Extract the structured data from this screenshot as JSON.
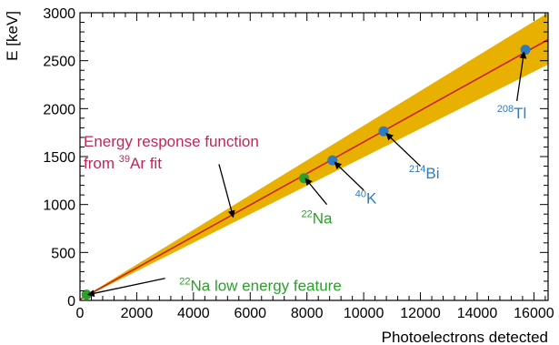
{
  "chart_data": {
    "type": "scatter",
    "xlabel": "Photoelectrons detected",
    "ylabel": "E [keV]",
    "xlim": [
      0,
      16500
    ],
    "ylim": [
      0,
      3000
    ],
    "x_ticks": [
      0,
      2000,
      4000,
      6000,
      8000,
      10000,
      12000,
      14000,
      16000
    ],
    "y_ticks": [
      0,
      500,
      1000,
      1500,
      2000,
      2500,
      3000
    ],
    "grid": false,
    "fit": {
      "x": [
        0,
        16500
      ],
      "y": [
        10,
        2720
      ],
      "band_upper": [
        12,
        3000
      ],
      "band_lower": [
        8,
        2460
      ],
      "color": "#cc2222",
      "band_color": "#e8b000"
    },
    "series": [
      {
        "points": [
          {
            "x": 8900,
            "y": 1461
          },
          {
            "x": 10700,
            "y": 1764
          },
          {
            "x": 15700,
            "y": 2614
          }
        ],
        "color": "#2e7cc0"
      },
      {
        "points": [
          {
            "x": 7900,
            "y": 1275
          },
          {
            "x": 230,
            "y": 60
          }
        ],
        "color": "#2aa02a"
      }
    ],
    "annotations": [
      {
        "id": "fit",
        "lines": [
          {
            "text": "Energy response function"
          },
          {
            "pre": "from ",
            "sup": "39",
            "post": "Ar fit"
          }
        ],
        "color": "#c0265a",
        "arrow_from": {
          "x": 4900,
          "y": 1420
        },
        "arrow_to": {
          "x": 5400,
          "y": 870
        }
      },
      {
        "id": "na22",
        "sup": "22",
        "post": "Na",
        "color": "#2aa02a",
        "label_at": {
          "x": 7800,
          "y": 800
        },
        "arrow_from": {
          "x": 8700,
          "y": 1000
        },
        "arrow_to": {
          "x": 7950,
          "y": 1270
        }
      },
      {
        "id": "k40",
        "sup": "40",
        "post": "K",
        "color": "#2e7cc0",
        "label_at": {
          "x": 9700,
          "y": 1010
        },
        "arrow_from": {
          "x": 10000,
          "y": 1150
        },
        "arrow_to": {
          "x": 8980,
          "y": 1440
        }
      },
      {
        "id": "bi214",
        "sup": "214",
        "post": "Bi",
        "color": "#2e7cc0",
        "label_at": {
          "x": 11600,
          "y": 1270
        },
        "arrow_from": {
          "x": 12000,
          "y": 1400
        },
        "arrow_to": {
          "x": 10800,
          "y": 1740
        }
      },
      {
        "id": "tl208",
        "sup": "208",
        "post": "Tl",
        "color": "#2e7cc0",
        "label_at": {
          "x": 14700,
          "y": 1900
        },
        "arrow_from": {
          "x": 15400,
          "y": 2080
        },
        "arrow_to": {
          "x": 15650,
          "y": 2590
        }
      },
      {
        "id": "na22low",
        "sup": "22",
        "post": "Na low energy feature",
        "color": "#2aa02a",
        "label_at": {
          "x": 3500,
          "y": 100
        },
        "arrow_from": {
          "x": 3000,
          "y": 230
        },
        "arrow_to": {
          "x": 280,
          "y": 60
        }
      }
    ]
  }
}
